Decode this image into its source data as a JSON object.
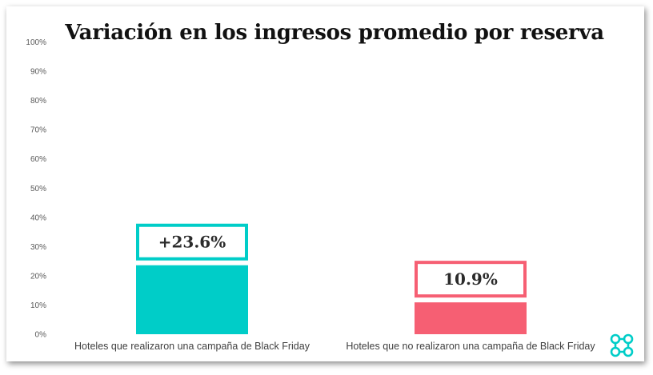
{
  "chart_data": {
    "type": "bar",
    "title": "Variación en los ingresos promedio por reserva",
    "categories": [
      "Hoteles que realizaron una campaña de Black Friday",
      "Hoteles que no realizaron una campaña de Black Friday"
    ],
    "values": [
      23.6,
      10.9
    ],
    "data_labels": [
      "+23.6%",
      "10.9%"
    ],
    "colors": [
      "#00CDC8",
      "#F65F73"
    ],
    "yticks": [
      "0%",
      "10%",
      "20%",
      "30%",
      "40%",
      "50%",
      "60%",
      "70%",
      "80%",
      "90%",
      "100%"
    ],
    "ylim": [
      0,
      100
    ],
    "xlabel": "",
    "ylabel": "",
    "grid": false
  },
  "logo": {
    "icon": "cmd-knot-icon",
    "color": "#00CDC8"
  }
}
